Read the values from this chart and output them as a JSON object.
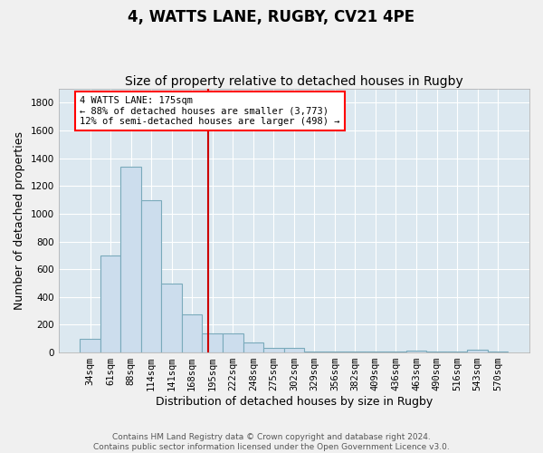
{
  "title": "4, WATTS LANE, RUGBY, CV21 4PE",
  "subtitle": "Size of property relative to detached houses in Rugby",
  "xlabel": "Distribution of detached houses by size in Rugby",
  "ylabel": "Number of detached properties",
  "categories": [
    "34sqm",
    "61sqm",
    "88sqm",
    "114sqm",
    "141sqm",
    "168sqm",
    "195sqm",
    "222sqm",
    "248sqm",
    "275sqm",
    "302sqm",
    "329sqm",
    "356sqm",
    "382sqm",
    "409sqm",
    "436sqm",
    "463sqm",
    "490sqm",
    "516sqm",
    "543sqm",
    "570sqm"
  ],
  "values": [
    100,
    700,
    1340,
    1100,
    500,
    275,
    140,
    140,
    75,
    30,
    35,
    10,
    5,
    5,
    5,
    5,
    15,
    5,
    5,
    20,
    5
  ],
  "bar_color": "#ccdded",
  "bar_edge_color": "#7aaabb",
  "bar_width": 1.0,
  "ylim": [
    0,
    1900
  ],
  "yticks": [
    0,
    200,
    400,
    600,
    800,
    1000,
    1200,
    1400,
    1600,
    1800
  ],
  "property_line_x": 5.77,
  "property_line_color": "#cc0000",
  "annotation_line1": "4 WATTS LANE: 175sqm",
  "annotation_line2": "← 88% of detached houses are smaller (3,773)",
  "annotation_line3": "12% of semi-detached houses are larger (498) →",
  "footer": "Contains HM Land Registry data © Crown copyright and database right 2024.\nContains public sector information licensed under the Open Government Licence v3.0.",
  "background_color": "#dce8f0",
  "grid_color": "#ffffff",
  "fig_background": "#f0f0f0",
  "title_fontsize": 12,
  "subtitle_fontsize": 10,
  "tick_fontsize": 7.5,
  "ylabel_fontsize": 9,
  "xlabel_fontsize": 9,
  "footer_fontsize": 6.5
}
